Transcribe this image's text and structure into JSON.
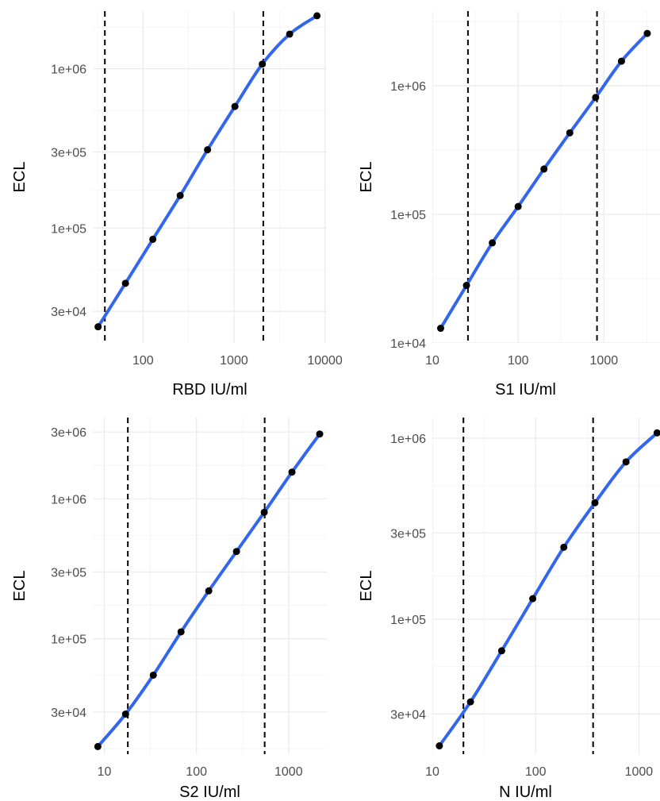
{
  "chart_data": [
    {
      "type": "line",
      "title": "",
      "xlabel": "RBD IU/ml",
      "ylabel": "ECL",
      "x_scale": "log",
      "y_scale": "log",
      "xlim": [
        28,
        10500
      ],
      "ylim": [
        19000,
        2300000
      ],
      "x_ticks": [
        100,
        1000,
        10000
      ],
      "x_tick_labels": [
        "100",
        "1000",
        "10000"
      ],
      "y_ticks": [
        30000,
        100000,
        300000,
        1000000
      ],
      "y_tick_labels": [
        "3e+04",
        "1e+05",
        "3e+05",
        "1e+06"
      ],
      "cutoff_lines_x": [
        38,
        2100
      ],
      "points": {
        "x": [
          32,
          64,
          128,
          256,
          512,
          1024,
          2048,
          4096,
          8192
        ],
        "y": [
          24000,
          45000,
          85000,
          160000,
          310000,
          580000,
          1070000,
          1650000,
          2150000
        ]
      },
      "grid": true,
      "legend": "none"
    },
    {
      "type": "line",
      "title": "",
      "xlabel": "S1 IU/ml",
      "ylabel": "ECL",
      "x_scale": "log",
      "y_scale": "log",
      "xlim": [
        10,
        4500
      ],
      "ylim": [
        10000,
        3800000
      ],
      "x_ticks": [
        10,
        100,
        1000
      ],
      "x_tick_labels": [
        "10",
        "100",
        "1000"
      ],
      "y_ticks": [
        10000,
        100000,
        1000000
      ],
      "y_tick_labels": [
        "1e+04",
        "1e+05",
        "1e+06"
      ],
      "cutoff_lines_x": [
        26,
        830
      ],
      "points": {
        "x": [
          12.5,
          25,
          50,
          100,
          200,
          400,
          800,
          1600,
          3200
        ],
        "y": [
          13000,
          28000,
          60000,
          115000,
          225000,
          430000,
          810000,
          1550000,
          2550000
        ]
      },
      "grid": true,
      "legend": "none"
    },
    {
      "type": "line",
      "title": "",
      "xlabel": "S2 IU/ml",
      "ylabel": "ECL",
      "x_scale": "log",
      "y_scale": "log",
      "xlim": [
        7.5,
        2600
      ],
      "ylim": [
        15000,
        3800000
      ],
      "x_ticks": [
        10,
        100,
        1000
      ],
      "x_tick_labels": [
        "10",
        "100",
        "1000"
      ],
      "y_ticks": [
        30000,
        100000,
        300000,
        1000000,
        3000000
      ],
      "y_tick_labels": [
        "3e+04",
        "1e+05",
        "3e+05",
        "1e+06",
        "3e+06"
      ],
      "cutoff_lines_x": [
        18,
        550
      ],
      "points": {
        "x": [
          8.5,
          17,
          34,
          68,
          136,
          272,
          544,
          1088,
          2176
        ],
        "y": [
          17000,
          29000,
          55000,
          112000,
          220000,
          420000,
          800000,
          1550000,
          2900000
        ]
      },
      "grid": true,
      "legend": "none"
    },
    {
      "type": "line",
      "title": "",
      "xlabel": "N IU/ml",
      "ylabel": "ECL",
      "x_scale": "log",
      "y_scale": "log",
      "xlim": [
        10,
        1600
      ],
      "ylim": [
        18000,
        1300000
      ],
      "x_ticks": [
        10,
        100,
        1000
      ],
      "x_tick_labels": [
        "10",
        "100",
        "1000"
      ],
      "y_ticks": [
        30000,
        100000,
        300000,
        1000000
      ],
      "y_tick_labels": [
        "3e+04",
        "1e+05",
        "3e+05",
        "1e+06"
      ],
      "cutoff_lines_x": [
        20,
        360
      ],
      "points": {
        "x": [
          11.7,
          23.4,
          46.9,
          93.8,
          187.5,
          375,
          750,
          1500
        ],
        "y": [
          20000,
          35000,
          67000,
          130000,
          250000,
          440000,
          740000,
          1070000
        ]
      },
      "grid": true,
      "legend": "none"
    }
  ]
}
